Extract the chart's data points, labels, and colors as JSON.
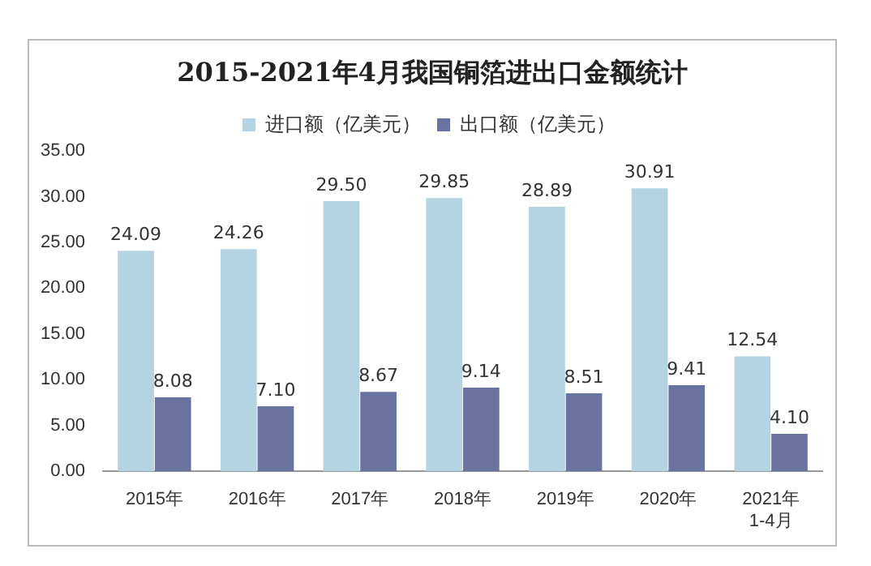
{
  "chart_data": {
    "type": "bar",
    "title": "2015-2021年4月我国铜箔进出口金额统计",
    "categories": [
      "2015年",
      "2016年",
      "2017年",
      "2018年",
      "2019年",
      "2020年",
      "2021年\n1-4月"
    ],
    "series": [
      {
        "name": "进口额（亿美元）",
        "color": "#b4d4e4",
        "values": [
          24.09,
          24.26,
          29.5,
          29.85,
          28.89,
          30.91,
          12.54
        ],
        "value_labels": [
          "24.09",
          "24.26",
          "29.50",
          "29.85",
          "28.89",
          "30.91",
          "12.54"
        ]
      },
      {
        "name": "出口额（亿美元）",
        "color": "#6a72a0",
        "values": [
          8.08,
          7.1,
          8.67,
          9.14,
          8.51,
          9.41,
          4.1
        ],
        "value_labels": [
          "8.08",
          "7.10",
          "8.67",
          "9.14",
          "8.51",
          "9.41",
          "4.10"
        ]
      }
    ],
    "ylim": [
      0,
      35
    ],
    "yticks": [
      {
        "value": 0,
        "label": "0.00"
      },
      {
        "value": 5,
        "label": "5.00"
      },
      {
        "value": 10,
        "label": "10.00"
      },
      {
        "value": 15,
        "label": "15.00"
      },
      {
        "value": 20,
        "label": "20.00"
      },
      {
        "value": 25,
        "label": "25.00"
      },
      {
        "value": 30,
        "label": "30.00"
      },
      {
        "value": 35,
        "label": "35.00"
      }
    ],
    "grid": false,
    "legend": "top"
  }
}
